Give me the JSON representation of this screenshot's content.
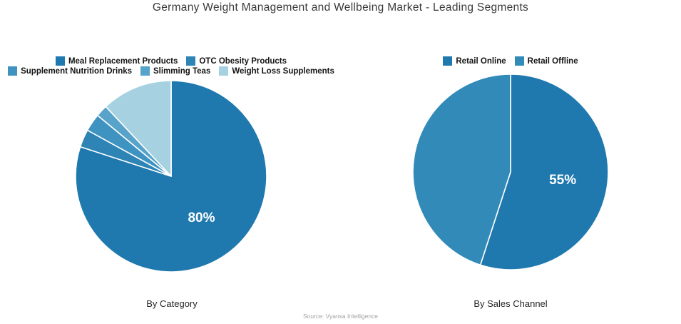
{
  "title": "Germany Weight Management and Wellbeing Market - Leading Segments",
  "source": "Source: Vyansa Intelligence",
  "chart_data": [
    {
      "type": "pie",
      "title": "By Category",
      "legend_position": "top",
      "start_angle_deg": 0,
      "direction": "clockwise",
      "legend_rows": [
        [
          0,
          1
        ],
        [
          2,
          3,
          4
        ]
      ],
      "slices": [
        {
          "name": "Meal Replacement Products",
          "value": 80,
          "color": "#1f79ae",
          "label": "80%"
        },
        {
          "name": "OTC Obesity Products",
          "value": 3,
          "color": "#2d84b5",
          "label": ""
        },
        {
          "name": "Supplement Nutrition Drinks",
          "value": 3,
          "color": "#3f93c1",
          "label": ""
        },
        {
          "name": "Slimming Teas",
          "value": 2,
          "color": "#57a3c9",
          "label": ""
        },
        {
          "name": "Weight Loss Supplements",
          "value": 12,
          "color": "#a6d1e1",
          "label": ""
        }
      ]
    },
    {
      "type": "pie",
      "title": "By Sales Channel",
      "legend_position": "top",
      "start_angle_deg": 0,
      "direction": "clockwise",
      "legend_rows": [
        [
          0,
          1
        ]
      ],
      "slices": [
        {
          "name": "Retail Online",
          "value": 55,
          "color": "#1f79ae",
          "label": "55%"
        },
        {
          "name": "Retail Offline",
          "value": 45,
          "color": "#328ab8",
          "label": ""
        }
      ]
    }
  ]
}
